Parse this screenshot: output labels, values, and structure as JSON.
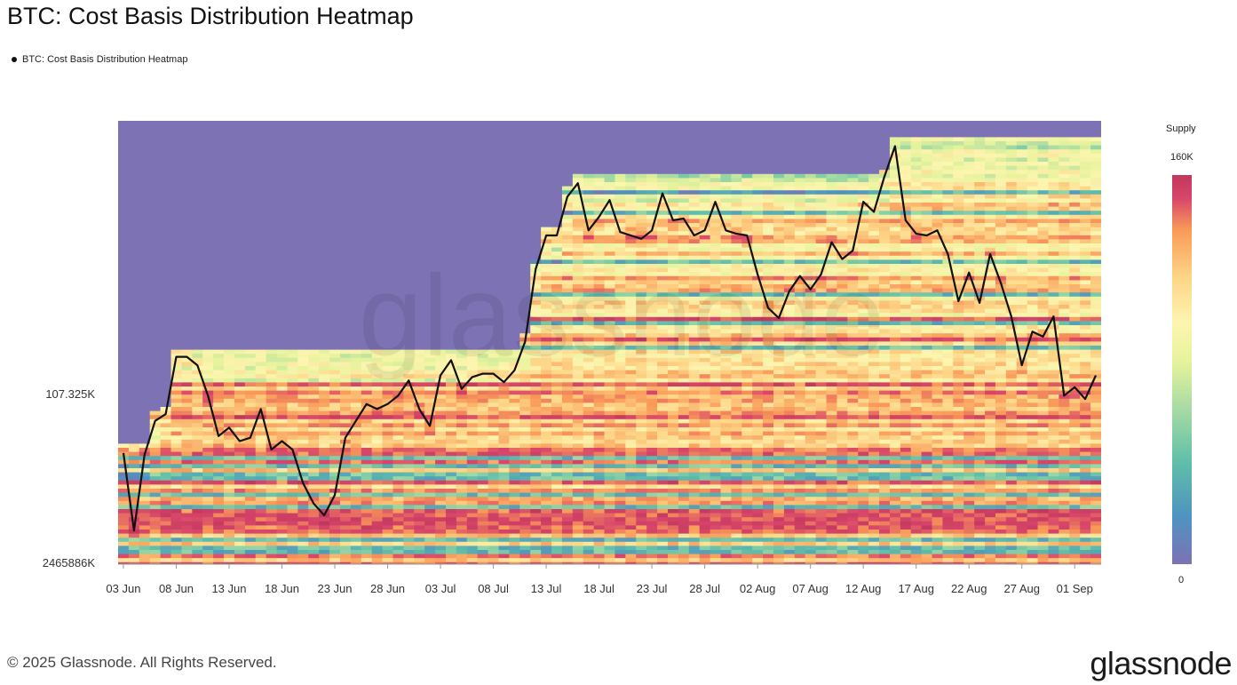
{
  "title": "BTC: Cost Basis Distribution Heatmap",
  "legend": {
    "label": "BTC: Cost Basis Distribution Heatmap",
    "color": "#111111"
  },
  "footer": {
    "copyright": "© 2025 Glassnode. All Rights Reserved.",
    "logo": "glassnode"
  },
  "watermark": "glassnode",
  "colorbar": {
    "title": "Supply",
    "max_label": "160K",
    "min_label": "0",
    "stops": [
      "#7d72b4",
      "#4f92c1",
      "#5fbea9",
      "#a7dba3",
      "#e6f39c",
      "#fdf5b0",
      "#fdd486",
      "#f99958",
      "#d8466a",
      "#c2375d"
    ]
  },
  "chart_data": {
    "type": "heatmap",
    "title": "BTC: Cost Basis Distribution Heatmap",
    "x_tick_labels": [
      "03 Jun",
      "08 Jun",
      "13 Jun",
      "18 Jun",
      "23 Jun",
      "28 Jun",
      "03 Jul",
      "08 Jul",
      "13 Jul",
      "18 Jul",
      "23 Jul",
      "28 Jul",
      "02 Aug",
      "07 Aug",
      "12 Aug",
      "17 Aug",
      "22 Aug",
      "27 Aug",
      "01 Sep"
    ],
    "y_tick_labels": [
      "107.325K",
      "2465886K"
    ],
    "x_range": [
      "2025-06-03",
      "2025-09-02"
    ],
    "colorscale_range": [
      0,
      160000
    ],
    "grid": false,
    "legend_position": "top-left",
    "series": [
      {
        "name": "BTC: Cost Basis Distribution Heatmap",
        "type": "line",
        "color": "#111111",
        "values": [
          104600,
          100000,
          104500,
          106500,
          106900,
          110300,
          110300,
          109800,
          108000,
          105600,
          106100,
          105300,
          105500,
          107200,
          104800,
          105300,
          104800,
          102800,
          101600,
          100900,
          102100,
          105500,
          106500,
          107500,
          107200,
          107500,
          108000,
          108900,
          107200,
          106200,
          109200,
          110100,
          108400,
          109100,
          109300,
          109300,
          108800,
          109500,
          111200,
          115500,
          117500,
          117500,
          119800,
          120600,
          117800,
          118600,
          119600,
          117700,
          117500,
          117300,
          117800,
          120000,
          118400,
          118500,
          117500,
          117800,
          119500,
          117800,
          117600,
          117500,
          115200,
          113200,
          112600,
          114200,
          115100,
          114300,
          115200,
          117100,
          116100,
          116600,
          119500,
          118900,
          121000,
          122800,
          118400,
          117600,
          117500,
          117800,
          116400,
          113600,
          115300,
          113500,
          116400,
          114700,
          112700,
          109800,
          111800,
          111500,
          112700,
          108000,
          108500,
          107800,
          109200
        ]
      }
    ]
  }
}
